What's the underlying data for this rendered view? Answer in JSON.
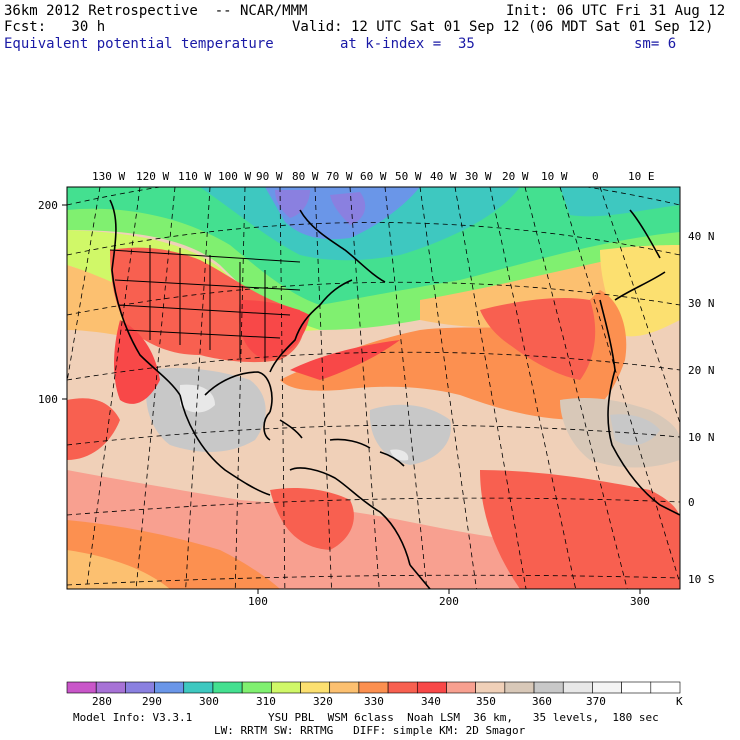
{
  "header": {
    "model": "36km 2012 Retrospective  -- NCAR/MMM",
    "init": "Init: 06 UTC Fri 31 Aug 12",
    "fcst": "Fcst:   30 h",
    "valid": "Valid: 12 UTC Sat 01 Sep 12 (06 MDT Sat 01 Sep 12)",
    "field": "Equivalent potential temperature",
    "level": "at k-index =  35",
    "smooth": "sm= 6"
  },
  "map": {
    "lon_labels": [
      "130 W",
      "120 W",
      "110 W",
      "100 W",
      "90 W",
      "80 W",
      "70 W",
      "60 W",
      "50 W",
      "40 W",
      "30 W",
      "20 W",
      "10 W",
      "0",
      "10 E"
    ],
    "lat_labels": [
      "40 N",
      "30 N",
      "20 N",
      "10 N",
      "0",
      "10 S"
    ],
    "grid_y_labels": [
      "200",
      "100"
    ],
    "grid_x_labels": [
      "100",
      "200",
      "300"
    ]
  },
  "colorbar": {
    "labels": [
      "280",
      "290",
      "300",
      "310",
      "320",
      "330",
      "340",
      "350",
      "360",
      "370"
    ],
    "unit": "K",
    "colors": [
      "#c956c9",
      "#a772d6",
      "#8a80e0",
      "#6a96e8",
      "#3ec8c0",
      "#44e090",
      "#80f070",
      "#d0f868",
      "#fce070",
      "#fcc070",
      "#fc9050",
      "#f86050",
      "#f84848",
      "#f8a090",
      "#f0d0b8",
      "#d8c8b8",
      "#c8c8c8",
      "#e8e8e8",
      "#f4f4f4",
      "#ffffff",
      "#ffffff"
    ]
  },
  "footer": {
    "line1_left": "Model Info: V3.3.1",
    "line1_right": "YSU PBL  WSM 6class  Noah LSM  36 km,   35 levels,  180 sec",
    "line2": "LW: RRTM SW: RRTMG   DIFF: simple KM: 2D Smagor"
  }
}
